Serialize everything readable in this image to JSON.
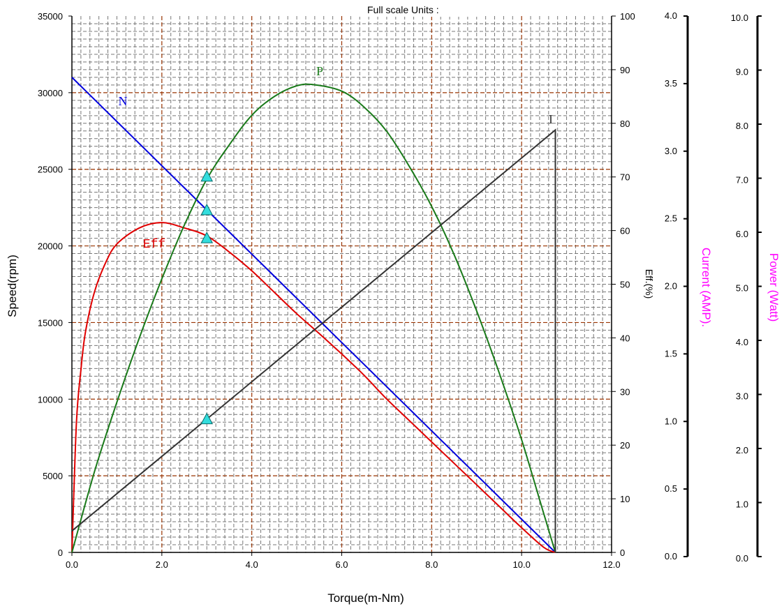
{
  "header": {
    "title": "Full scale Units :"
  },
  "colors": {
    "N": "#0000dd",
    "Eff": "#e00000",
    "P": "#1a7a1a",
    "I": "#333333",
    "grid_major": "#993300",
    "grid_minor": "#777777",
    "marker_fill": "#33dddd",
    "secondary_axis_title": "#ff00ff"
  },
  "chart_data": {
    "type": "line",
    "title": "Full scale Units :",
    "xlabel": "Torque(m-Nm)",
    "xlim": [
      0,
      12
    ],
    "x_ticks": [
      "0.0",
      "2.0",
      "4.0",
      "6.0",
      "8.0",
      "10.0",
      "12.0"
    ],
    "grid": true,
    "axes": {
      "speed": {
        "label": "Speed(rpm)",
        "lim": [
          0,
          35000
        ],
        "ticks": [
          "0",
          "5000",
          "10000",
          "15000",
          "20000",
          "25000",
          "30000",
          "35000"
        ]
      },
      "eff": {
        "label": "Eff.(%)",
        "lim": [
          0,
          100
        ],
        "ticks": [
          "0",
          "10",
          "20",
          "30",
          "40",
          "50",
          "60",
          "70",
          "80",
          "90",
          "100"
        ]
      },
      "current": {
        "label": "Current (AMP).",
        "lim": [
          0,
          4
        ],
        "ticks": [
          "0.0",
          "0.5",
          "1.0",
          "1.5",
          "2.0",
          "2.5",
          "3.0",
          "3.5",
          "4.0"
        ]
      },
      "power": {
        "label": "Power (Watt)",
        "lim": [
          0,
          10
        ],
        "ticks": [
          "0.0",
          "1.0",
          "2.0",
          "3.0",
          "4.0",
          "5.0",
          "6.0",
          "7.0",
          "8.0",
          "9.0",
          "10.0"
        ]
      }
    },
    "series": [
      {
        "name": "N",
        "axis": "speed",
        "x": [
          0,
          10.75
        ],
        "y": [
          31000,
          0
        ],
        "marker": {
          "x": 3.0,
          "y": 22300
        }
      },
      {
        "name": "Eff",
        "axis": "eff",
        "x": [
          0,
          0.1,
          0.2,
          0.3,
          0.5,
          0.75,
          1.0,
          1.5,
          2.0,
          2.5,
          3.0,
          3.5,
          4.0,
          4.5,
          5.0,
          5.5,
          6.0,
          6.5,
          7.0,
          7.5,
          8.0,
          8.5,
          9.0,
          9.5,
          10.0,
          10.5,
          10.75
        ],
        "y": [
          0,
          24,
          34,
          41,
          48.5,
          54,
          57.5,
          60.5,
          61.5,
          60.5,
          59,
          56,
          52.5,
          48.5,
          44.5,
          40.8,
          37,
          33,
          28.6,
          24.6,
          20.6,
          16.6,
          12.6,
          8.6,
          4.6,
          0.9,
          0
        ],
        "marker": {
          "x": 3.0,
          "y": 58.5
        }
      },
      {
        "name": "P",
        "axis": "power",
        "x": [
          0,
          0.5,
          1.0,
          1.5,
          2.0,
          2.5,
          3.0,
          3.5,
          4.0,
          4.5,
          5.0,
          5.375,
          6.0,
          6.5,
          7.0,
          7.5,
          8.0,
          8.5,
          9.0,
          9.5,
          10.0,
          10.5,
          10.75
        ],
        "y": [
          0,
          1.5,
          2.8,
          4.0,
          5.1,
          6.1,
          6.96,
          7.6,
          8.15,
          8.5,
          8.7,
          8.72,
          8.6,
          8.3,
          7.85,
          7.2,
          6.45,
          5.55,
          4.5,
          3.35,
          2.1,
          0.7,
          0
        ],
        "marker": {
          "x": 3.0,
          "y": 7.0
        }
      },
      {
        "name": "I",
        "axis": "current",
        "x": [
          0,
          10.75,
          10.75
        ],
        "y": [
          0.16,
          3.15,
          0
        ],
        "marker": {
          "x": 3.0,
          "y": 0.99
        }
      }
    ],
    "annotations": [
      {
        "text": "N",
        "series": "N"
      },
      {
        "text": "Eff",
        "series": "Eff"
      },
      {
        "text": "P",
        "series": "P"
      },
      {
        "text": "I",
        "series": "I"
      }
    ]
  }
}
